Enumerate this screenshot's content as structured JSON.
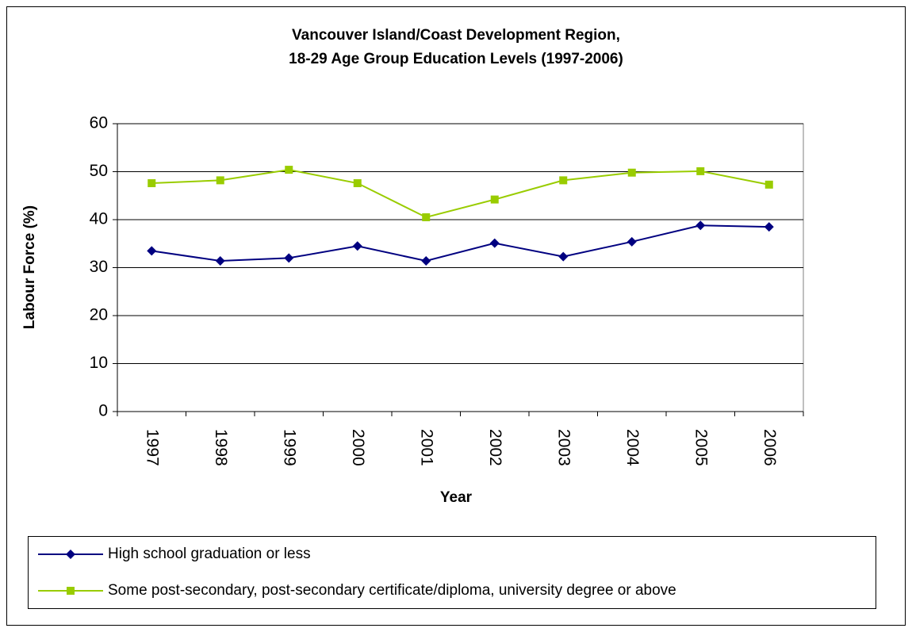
{
  "chart_data": {
    "type": "line",
    "title": [
      "Vancouver Island/Coast Development Region,",
      "18-29 Age Group Education Levels (1997-2006)"
    ],
    "x_label": "Year",
    "y_label": "Labour Force (%)",
    "categories": [
      "1997",
      "1998",
      "1999",
      "2000",
      "2001",
      "2002",
      "2003",
      "2004",
      "2005",
      "2006"
    ],
    "series": [
      {
        "name": "High school graduation or less",
        "color": "#000080",
        "marker": "diamond",
        "values": [
          33.5,
          31.4,
          32.0,
          34.5,
          31.4,
          35.1,
          32.3,
          35.4,
          38.8,
          38.5
        ]
      },
      {
        "name": "Some post-secondary, post-secondary certificate/diploma, university degree or above",
        "color": "#99cc00",
        "marker": "square",
        "values": [
          47.6,
          48.2,
          50.4,
          47.6,
          40.5,
          44.2,
          48.2,
          49.8,
          50.1,
          47.3
        ]
      }
    ],
    "ylim": [
      0,
      60
    ],
    "yticks": [
      0,
      10,
      20,
      30,
      40,
      50,
      60
    ],
    "grid": true,
    "legend": "bottom"
  }
}
